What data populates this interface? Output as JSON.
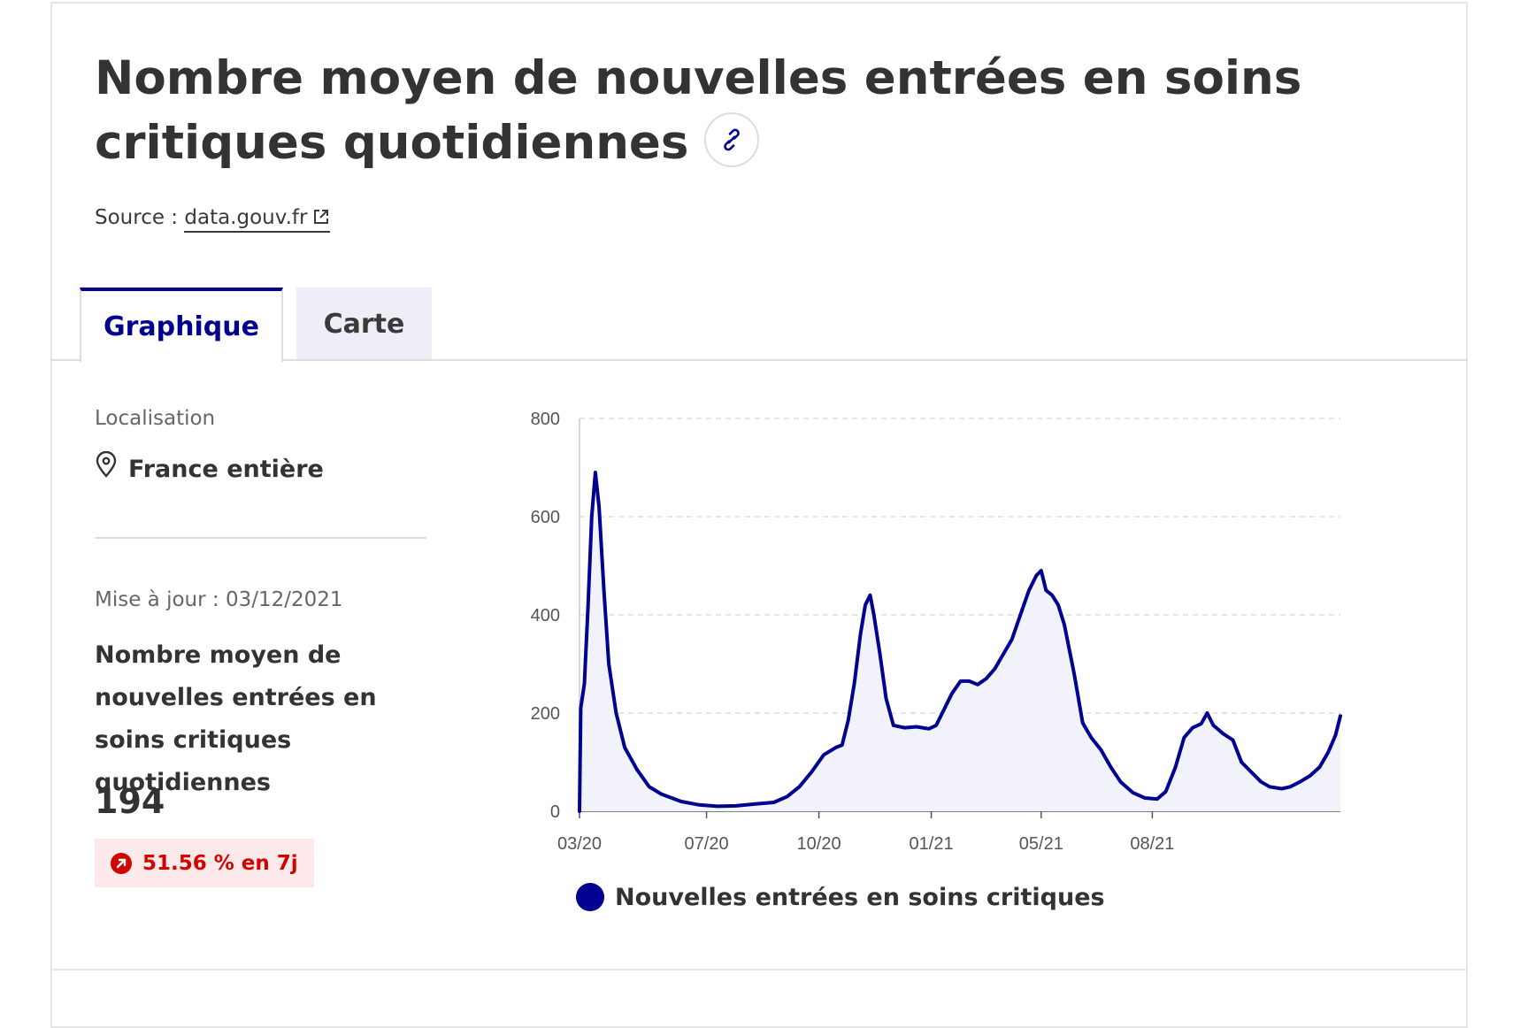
{
  "header": {
    "title": "Nombre moyen de nouvelles entrées en soins critiques quotidiennes",
    "source_prefix": "Source :",
    "source_link": "data.gouv.fr"
  },
  "tabs": [
    {
      "label": "Graphique",
      "active": true
    },
    {
      "label": "Carte",
      "active": false
    }
  ],
  "sidebar": {
    "location_label": "Localisation",
    "location_value": "France entière",
    "update_text": "Mise à jour : 03/12/2021",
    "kpi_title": "Nombre moyen de nouvelles entrées en soins critiques quotidiennes",
    "kpi_value": "194",
    "kpi_change": "51.56 % en 7j"
  },
  "colors": {
    "accent": "#000091",
    "area_fill": "#f2f2fb",
    "alert_text": "#ce0500",
    "alert_bg": "#fde9e9"
  },
  "icons": {
    "title_link": "link-icon",
    "source_external": "external-link-icon",
    "location": "map-pin-icon",
    "trend": "trend-up-arrow-icon"
  },
  "chart_data": {
    "type": "area",
    "title": "",
    "xlabel": "",
    "ylabel": "",
    "x_ticks": [
      "03/20",
      "07/20",
      "10/20",
      "01/21",
      "05/21",
      "08/21"
    ],
    "y_ticks": [
      0,
      200,
      400,
      600,
      800
    ],
    "ylim": [
      0,
      800
    ],
    "grid": "horizontal dashed",
    "legend_position": "bottom",
    "series": [
      {
        "name": "Nouvelles entrées en soins critiques",
        "color": "#000091",
        "points": [
          [
            "2020-03-19",
            0
          ],
          [
            "2020-03-20",
            210
          ],
          [
            "2020-03-23",
            260
          ],
          [
            "2020-03-26",
            420
          ],
          [
            "2020-03-29",
            600
          ],
          [
            "2020-04-01",
            690
          ],
          [
            "2020-04-04",
            620
          ],
          [
            "2020-04-08",
            450
          ],
          [
            "2020-04-12",
            300
          ],
          [
            "2020-04-18",
            200
          ],
          [
            "2020-04-25",
            130
          ],
          [
            "2020-05-05",
            85
          ],
          [
            "2020-05-15",
            50
          ],
          [
            "2020-05-25",
            35
          ],
          [
            "2020-06-10",
            20
          ],
          [
            "2020-06-25",
            13
          ],
          [
            "2020-07-10",
            10
          ],
          [
            "2020-07-25",
            11
          ],
          [
            "2020-08-10",
            15
          ],
          [
            "2020-08-25",
            18
          ],
          [
            "2020-09-05",
            30
          ],
          [
            "2020-09-15",
            50
          ],
          [
            "2020-09-25",
            80
          ],
          [
            "2020-10-05",
            115
          ],
          [
            "2020-10-15",
            130
          ],
          [
            "2020-10-20",
            135
          ],
          [
            "2020-10-25",
            185
          ],
          [
            "2020-10-30",
            260
          ],
          [
            "2020-11-04",
            360
          ],
          [
            "2020-11-08",
            420
          ],
          [
            "2020-11-12",
            440
          ],
          [
            "2020-11-15",
            400
          ],
          [
            "2020-11-20",
            320
          ],
          [
            "2020-11-25",
            230
          ],
          [
            "2020-12-01",
            175
          ],
          [
            "2020-12-10",
            170
          ],
          [
            "2020-12-20",
            172
          ],
          [
            "2020-12-30",
            168
          ],
          [
            "2021-01-05",
            175
          ],
          [
            "2021-01-10",
            200
          ],
          [
            "2021-01-18",
            240
          ],
          [
            "2021-01-25",
            265
          ],
          [
            "2021-02-01",
            265
          ],
          [
            "2021-02-08",
            258
          ],
          [
            "2021-02-15",
            270
          ],
          [
            "2021-02-22",
            290
          ],
          [
            "2021-03-01",
            320
          ],
          [
            "2021-03-08",
            350
          ],
          [
            "2021-03-15",
            400
          ],
          [
            "2021-03-22",
            450
          ],
          [
            "2021-03-28",
            480
          ],
          [
            "2021-04-01",
            490
          ],
          [
            "2021-04-05",
            450
          ],
          [
            "2021-04-10",
            440
          ],
          [
            "2021-04-15",
            420
          ],
          [
            "2021-04-20",
            380
          ],
          [
            "2021-04-28",
            280
          ],
          [
            "2021-05-05",
            180
          ],
          [
            "2021-05-12",
            150
          ],
          [
            "2021-05-20",
            125
          ],
          [
            "2021-05-28",
            90
          ],
          [
            "2021-06-05",
            60
          ],
          [
            "2021-06-15",
            38
          ],
          [
            "2021-06-25",
            27
          ],
          [
            "2021-07-05",
            25
          ],
          [
            "2021-07-12",
            40
          ],
          [
            "2021-07-20",
            90
          ],
          [
            "2021-07-27",
            150
          ],
          [
            "2021-08-03",
            170
          ],
          [
            "2021-08-10",
            178
          ],
          [
            "2021-08-15",
            200
          ],
          [
            "2021-08-20",
            175
          ],
          [
            "2021-08-28",
            158
          ],
          [
            "2021-09-05",
            145
          ],
          [
            "2021-09-12",
            100
          ],
          [
            "2021-09-20",
            80
          ],
          [
            "2021-09-28",
            60
          ],
          [
            "2021-10-05",
            50
          ],
          [
            "2021-10-15",
            46
          ],
          [
            "2021-10-22",
            50
          ],
          [
            "2021-10-30",
            60
          ],
          [
            "2021-11-07",
            72
          ],
          [
            "2021-11-15",
            90
          ],
          [
            "2021-11-22",
            120
          ],
          [
            "2021-11-28",
            155
          ],
          [
            "2021-12-02",
            194
          ]
        ]
      }
    ]
  }
}
